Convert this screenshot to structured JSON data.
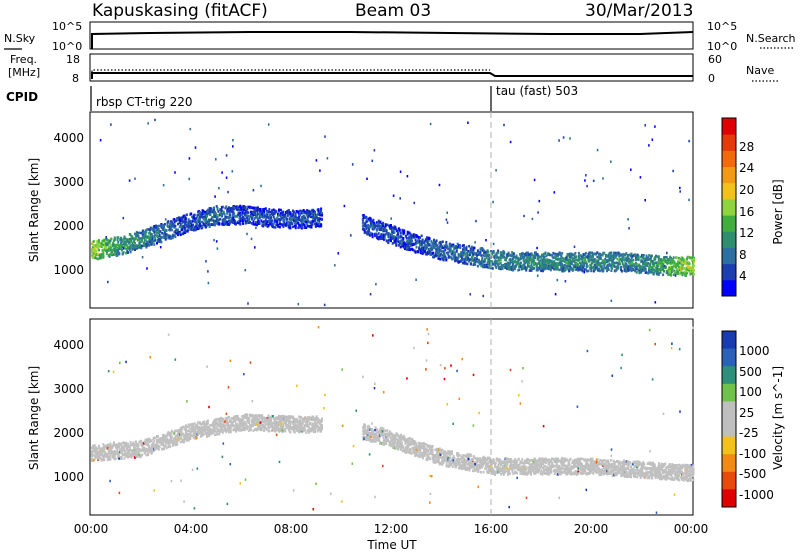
{
  "header": {
    "station": "Kapuskasing (fitACF)",
    "beam": "Beam 03",
    "date": "30/Mar/2013"
  },
  "top_panels": {
    "nsky_label": "N.Sky",
    "nsearch_label": "N.Search",
    "freq_label_line1": "Freq.",
    "freq_label_line2": "[MHz]",
    "nave_label": "Nave",
    "cpid_label": "CPID",
    "noise_ticks_left": [
      "10^5",
      "10^0"
    ],
    "noise_ticks_right": [
      "10^5",
      "10^0"
    ],
    "freq_ticks": [
      "18",
      "8"
    ],
    "nave_ticks": [
      "60",
      "0"
    ]
  },
  "cpid_segments": [
    {
      "label": "rbsp CT-trig 220",
      "start_hour": 0,
      "end_hour": 16
    },
    {
      "label": "tau (fast) 503",
      "start_hour": 16,
      "end_hour": 24
    }
  ],
  "colors": {
    "power_scale": [
      "#0000ff",
      "#1c3fb0",
      "#2c6fa0",
      "#2e8f6e",
      "#3fae3f",
      "#8fd43f",
      "#f2c21a",
      "#f29a14",
      "#f26a0c",
      "#e63a0a",
      "#e00000"
    ],
    "velocity_scale": [
      "#1a3ab0",
      "#2a62b8",
      "#2e8f7a",
      "#6fc24a",
      "#bfbfbf",
      "#bfbfbf",
      "#f2c21a",
      "#f28a14",
      "#e84a0a",
      "#e00000"
    ],
    "ground_scatter": "#c0c0c0",
    "divider_line": "#b0b0b0"
  },
  "chart_data": [
    {
      "type": "heatmap",
      "title": "",
      "xlabel": "",
      "ylabel": "Slant Range [km]",
      "xlim": [
        0,
        24
      ],
      "ylim": [
        180,
        4600
      ],
      "yticks": [
        "1000",
        "2000",
        "3000",
        "4000"
      ],
      "colorbar": {
        "label": "Power [dB]",
        "range": [
          0,
          32
        ],
        "ticks": [
          "4",
          "8",
          "12",
          "16",
          "20",
          "24",
          "28"
        ]
      },
      "scatter_bands": [
        {
          "x": [
            0,
            1,
            2,
            3,
            4,
            5,
            6,
            7,
            8,
            9.2
          ],
          "range_km": [
            1500,
            1600,
            1750,
            1950,
            2150,
            2300,
            2300,
            2250,
            2200,
            2250
          ],
          "power_db": [
            18,
            12,
            10,
            8,
            6,
            8,
            6,
            6,
            6,
            6
          ]
        },
        {
          "x": [
            10.8,
            12,
            13,
            14,
            15,
            16,
            17,
            18,
            19,
            20,
            21,
            22,
            23,
            24
          ],
          "range_km": [
            2100,
            1850,
            1650,
            1500,
            1400,
            1300,
            1250,
            1250,
            1250,
            1250,
            1250,
            1200,
            1150,
            1150
          ],
          "power_db": [
            6,
            6,
            6,
            8,
            8,
            10,
            10,
            10,
            10,
            10,
            10,
            10,
            14,
            18
          ]
        }
      ]
    },
    {
      "type": "heatmap",
      "title": "",
      "xlabel": "Time UT",
      "ylabel": "Slant Range [km]",
      "xlim": [
        0,
        24
      ],
      "ylim": [
        180,
        4600
      ],
      "xticks": [
        "00:00",
        "04:00",
        "08:00",
        "12:00",
        "16:00",
        "20:00",
        "00:00"
      ],
      "yticks": [
        "1000",
        "2000",
        "3000",
        "4000"
      ],
      "colorbar": {
        "label": "Velocity [m s^-1]",
        "ticks": [
          "1000",
          "500",
          "100",
          "25",
          "-25",
          "-100",
          "-500",
          "-1000"
        ]
      },
      "ground_scatter_band": {
        "x": [
          0,
          2,
          4,
          6,
          8,
          9.2,
          11.5,
          14,
          16,
          20,
          24
        ],
        "range_km": [
          1600,
          1700,
          2100,
          2300,
          2250,
          2250,
          2000,
          1500,
          1300,
          1300,
          1150
        ]
      }
    }
  ]
}
